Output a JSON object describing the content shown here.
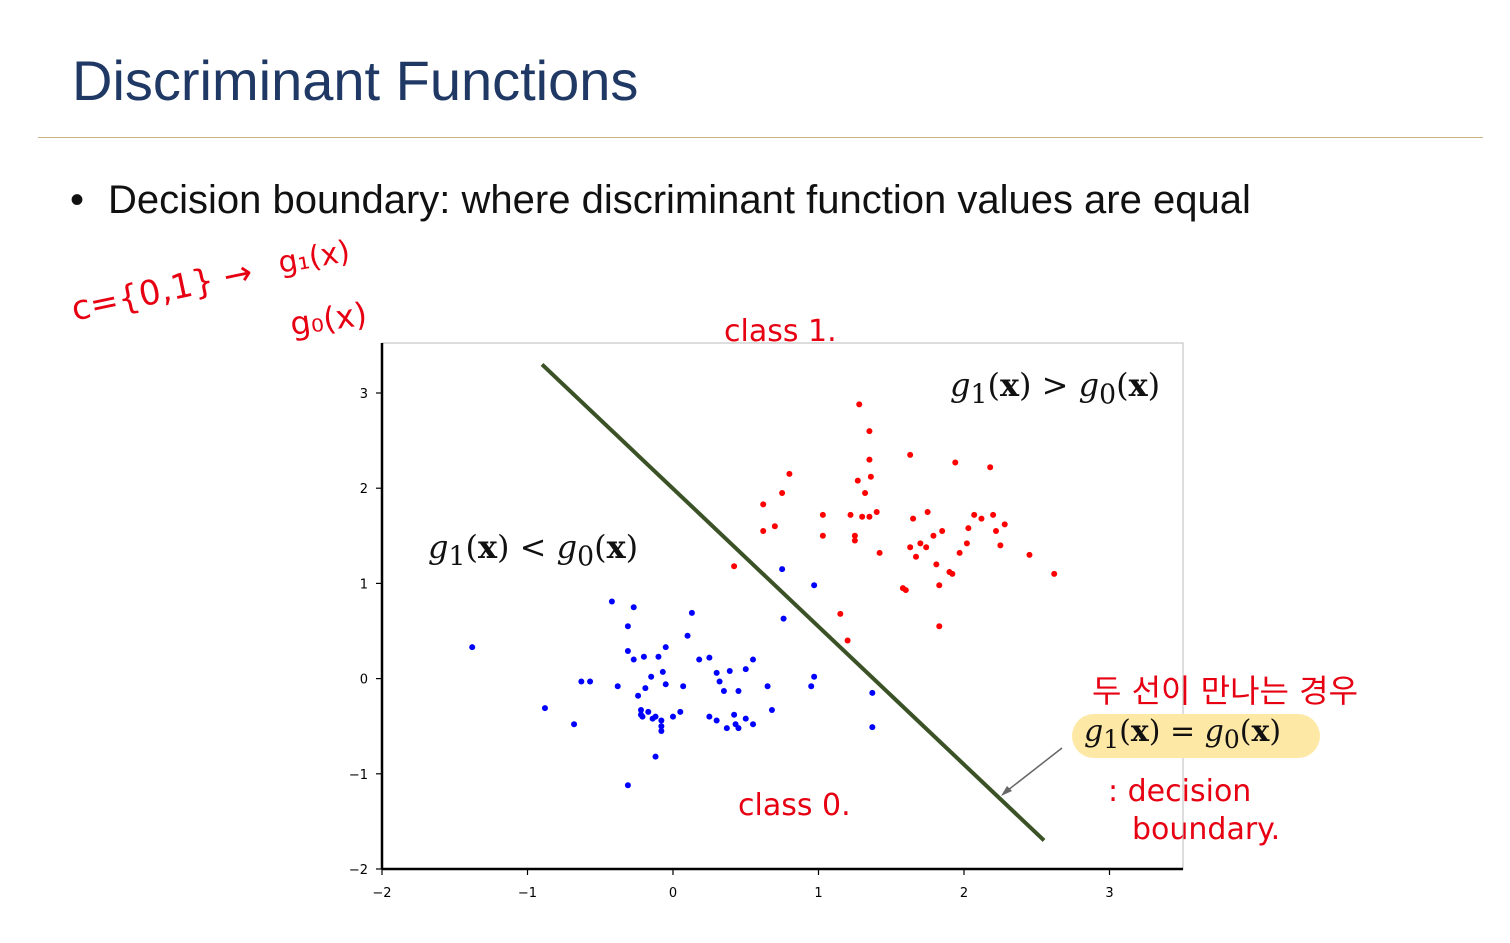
{
  "slide": {
    "title": "Discriminant Functions",
    "bullet": "Decision boundary: where discriminant function values are equal"
  },
  "annotations": {
    "set_note": "c={0,1} →",
    "g1_note": "g₁(x)",
    "g0_note": "g₀(x)",
    "class1": "class 1.",
    "class0": "class 0.",
    "korean_note": "두 선이 만나는 경우",
    "decision_1": ": decision",
    "decision_2": "boundary."
  },
  "equations": {
    "region_upper": {
      "lhs": "g",
      "lhs_sub": "1",
      "arg": "x",
      "op": ">",
      "rhs": "g",
      "rhs_sub": "0"
    },
    "region_lower": {
      "lhs": "g",
      "lhs_sub": "1",
      "arg": "x",
      "op": "<",
      "rhs": "g",
      "rhs_sub": "0"
    },
    "boundary": {
      "lhs": "g",
      "lhs_sub": "1",
      "arg": "x",
      "op": "=",
      "rhs": "g",
      "rhs_sub": "0"
    }
  },
  "colors": {
    "title": "#1f3864",
    "rule": "#c9b37e",
    "annotation": "#e60012",
    "class0": "#0000ff",
    "class1": "#ff0000",
    "boundary": "#3a5226",
    "highlight": "#fde8a5"
  },
  "chart_data": {
    "type": "scatter",
    "title": "",
    "xlabel": "",
    "ylabel": "",
    "xlim": [
      -2,
      3.5
    ],
    "ylim": [
      -2,
      3.5
    ],
    "xticks": [
      -2,
      -1,
      0,
      1,
      2,
      3
    ],
    "yticks": [
      -2,
      -1,
      0,
      1,
      2,
      3
    ],
    "x_tick_labels": [
      "−2",
      "−1",
      "0",
      "1",
      "2",
      "3"
    ],
    "y_tick_labels": [
      "−2",
      "−1",
      "0",
      "1",
      "2",
      "3"
    ],
    "grid": false,
    "series": [
      {
        "color": "#0000ff",
        "points": [
          [
            -1.38,
            0.33
          ],
          [
            -0.88,
            -0.31
          ],
          [
            -0.68,
            -0.48
          ],
          [
            -0.63,
            -0.03
          ],
          [
            -0.57,
            -0.03
          ],
          [
            -0.42,
            0.81
          ],
          [
            -0.38,
            -0.08
          ],
          [
            -0.31,
            0.55
          ],
          [
            -0.31,
            0.29
          ],
          [
            -0.31,
            -1.12
          ],
          [
            -0.27,
            0.75
          ],
          [
            -0.27,
            0.2
          ],
          [
            -0.24,
            -0.18
          ],
          [
            -0.22,
            -0.33
          ],
          [
            -0.22,
            -0.38
          ],
          [
            -0.21,
            -0.4
          ],
          [
            -0.2,
            0.23
          ],
          [
            -0.19,
            -0.1
          ],
          [
            -0.17,
            -0.35
          ],
          [
            -0.15,
            0.02
          ],
          [
            -0.14,
            -0.42
          ],
          [
            -0.12,
            -0.4
          ],
          [
            -0.12,
            -0.82
          ],
          [
            -0.1,
            0.23
          ],
          [
            -0.08,
            -0.44
          ],
          [
            -0.08,
            -0.5
          ],
          [
            -0.08,
            -0.55
          ],
          [
            -0.07,
            0.07
          ],
          [
            -0.05,
            -0.06
          ],
          [
            -0.05,
            0.33
          ],
          [
            0.0,
            -0.4
          ],
          [
            0.05,
            -0.35
          ],
          [
            0.07,
            -0.08
          ],
          [
            0.1,
            0.45
          ],
          [
            0.13,
            0.69
          ],
          [
            0.18,
            0.2
          ],
          [
            0.25,
            -0.4
          ],
          [
            0.25,
            0.22
          ],
          [
            0.3,
            -0.44
          ],
          [
            0.3,
            0.06
          ],
          [
            0.32,
            -0.03
          ],
          [
            0.35,
            -0.13
          ],
          [
            0.37,
            -0.52
          ],
          [
            0.39,
            0.08
          ],
          [
            0.42,
            -0.38
          ],
          [
            0.43,
            -0.48
          ],
          [
            0.45,
            -0.52
          ],
          [
            0.45,
            -0.13
          ],
          [
            0.5,
            0.1
          ],
          [
            0.5,
            -0.42
          ],
          [
            0.55,
            -0.48
          ],
          [
            0.55,
            0.2
          ],
          [
            0.65,
            -0.08
          ],
          [
            0.68,
            -0.33
          ],
          [
            0.75,
            1.15
          ],
          [
            0.76,
            0.63
          ],
          [
            0.95,
            -0.08
          ],
          [
            0.97,
            0.02
          ],
          [
            0.97,
            0.98
          ],
          [
            1.37,
            -0.15
          ],
          [
            1.37,
            -0.51
          ]
        ]
      },
      {
        "color": "#ff0000",
        "points": [
          [
            0.42,
            1.18
          ],
          [
            0.62,
            1.83
          ],
          [
            0.62,
            1.55
          ],
          [
            0.7,
            1.6
          ],
          [
            0.75,
            1.95
          ],
          [
            0.8,
            2.15
          ],
          [
            1.03,
            1.72
          ],
          [
            1.03,
            1.5
          ],
          [
            1.15,
            0.68
          ],
          [
            1.2,
            0.4
          ],
          [
            1.22,
            1.72
          ],
          [
            1.25,
            1.5
          ],
          [
            1.25,
            1.45
          ],
          [
            1.27,
            2.08
          ],
          [
            1.28,
            2.88
          ],
          [
            1.3,
            1.7
          ],
          [
            1.32,
            1.95
          ],
          [
            1.35,
            2.6
          ],
          [
            1.35,
            2.3
          ],
          [
            1.35,
            1.7
          ],
          [
            1.36,
            2.12
          ],
          [
            1.4,
            1.75
          ],
          [
            1.42,
            1.32
          ],
          [
            1.58,
            0.95
          ],
          [
            1.6,
            0.93
          ],
          [
            1.63,
            2.35
          ],
          [
            1.63,
            1.38
          ],
          [
            1.65,
            1.68
          ],
          [
            1.67,
            1.28
          ],
          [
            1.7,
            1.42
          ],
          [
            1.74,
            1.38
          ],
          [
            1.75,
            1.75
          ],
          [
            1.79,
            1.5
          ],
          [
            1.81,
            1.2
          ],
          [
            1.83,
            0.55
          ],
          [
            1.83,
            0.98
          ],
          [
            1.85,
            1.55
          ],
          [
            1.9,
            1.12
          ],
          [
            1.92,
            1.1
          ],
          [
            1.94,
            2.27
          ],
          [
            1.97,
            1.32
          ],
          [
            2.02,
            1.42
          ],
          [
            2.03,
            1.58
          ],
          [
            2.07,
            1.72
          ],
          [
            2.12,
            1.68
          ],
          [
            2.18,
            2.22
          ],
          [
            2.2,
            1.72
          ],
          [
            2.22,
            1.55
          ],
          [
            2.25,
            1.4
          ],
          [
            2.28,
            1.62
          ],
          [
            2.45,
            1.3
          ],
          [
            2.62,
            1.1
          ]
        ]
      }
    ],
    "lines": [
      {
        "color": "#3a5226",
        "x": [
          -0.9,
          2.55
        ],
        "y": [
          3.3,
          -1.7
        ]
      }
    ]
  }
}
